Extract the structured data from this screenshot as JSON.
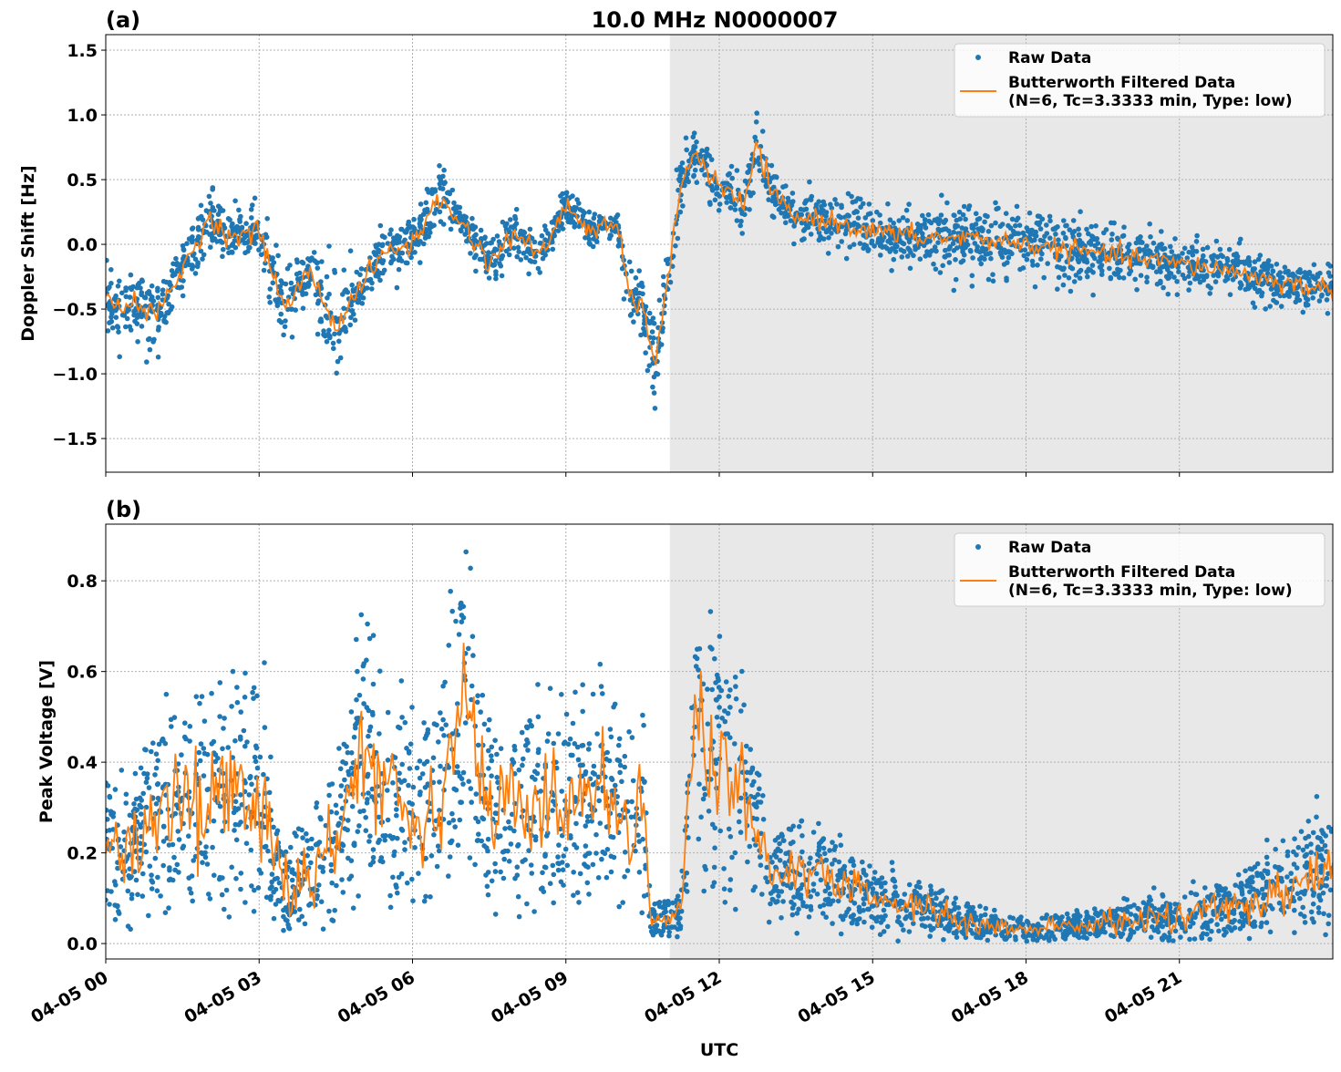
{
  "title": "10.0 MHz N0000007",
  "colors": {
    "raw": "#1f77b4",
    "filtered": "#ff7f0e",
    "shade": "#e8e8e8",
    "grid": "#b0b0b0"
  },
  "x_axis": {
    "label": "UTC",
    "range": [
      "04-05 00:00",
      "04-06 00:00"
    ],
    "ticks": [
      "04-05 00",
      "04-05 03",
      "04-05 06",
      "04-05 09",
      "04-05 12",
      "04-05 15",
      "04-05 18",
      "04-05 21"
    ],
    "tick_times": [
      "04-05 00:00",
      "04-05 03:00",
      "04-05 06:00",
      "04-05 09:00",
      "04-05 12:00",
      "04-05 15:00",
      "04-05 18:00",
      "04-05 21:00"
    ]
  },
  "legend": {
    "raw": "Raw Data",
    "filtered_line1": "Butterworth Filtered Data",
    "filtered_line2": "(N=6, Tc=3.3333 min, Type: low)",
    "placement": "upper-right"
  },
  "chart_data": [
    {
      "type": "scatter+line",
      "panel_label": "(a)",
      "ylabel": "Doppler Shift [Hz]",
      "ylim": [
        -1.76,
        1.62
      ],
      "yticks": [
        1.5,
        1.0,
        0.5,
        0.0,
        -0.5,
        -1.0,
        -1.5
      ],
      "ytick_labels": [
        "1.5",
        "1.0",
        "0.5",
        "0.0",
        "−0.5",
        "−1.0",
        "−1.5"
      ],
      "grid": true,
      "shaded_region": [
        "04-05 11:02",
        "04-06 00:00"
      ],
      "filtered": {
        "x": [
          "04-05 00:00",
          "04-05 00:30",
          "04-05 01:00",
          "04-05 01:30",
          "04-05 02:00",
          "04-05 02:30",
          "04-05 03:00",
          "04-05 03:30",
          "04-05 04:00",
          "04-05 04:30",
          "04-05 05:00",
          "04-05 05:30",
          "04-05 06:00",
          "04-05 06:30",
          "04-05 07:00",
          "04-05 07:30",
          "04-05 08:00",
          "04-05 08:30",
          "04-05 09:00",
          "04-05 09:30",
          "04-05 10:00",
          "04-05 10:15",
          "04-05 10:30",
          "04-05 10:45",
          "04-05 11:00",
          "04-05 11:15",
          "04-05 11:30",
          "04-05 12:00",
          "04-05 12:30",
          "04-05 12:45",
          "04-05 13:00",
          "04-05 13:30",
          "04-05 14:00",
          "04-05 14:30",
          "04-05 15:00",
          "04-05 16:00",
          "04-05 17:00",
          "04-05 18:00",
          "04-05 19:00",
          "04-05 20:00",
          "04-05 21:00",
          "04-05 22:00",
          "04-05 23:00",
          "04-06 00:00"
        ],
        "y": [
          -0.45,
          -0.45,
          -0.55,
          -0.2,
          0.2,
          0.05,
          0.1,
          -0.5,
          -0.2,
          -0.65,
          -0.3,
          -0.05,
          0.0,
          0.35,
          0.15,
          -0.15,
          0.1,
          -0.1,
          0.3,
          0.1,
          0.15,
          -0.4,
          -0.5,
          -0.9,
          -0.3,
          0.5,
          0.7,
          0.45,
          0.3,
          0.8,
          0.4,
          0.2,
          0.2,
          0.15,
          0.1,
          0.05,
          0.05,
          0.0,
          -0.05,
          -0.1,
          -0.15,
          -0.2,
          -0.3,
          -0.35
        ]
      },
      "raw_spread": [
        0.2,
        0.2,
        0.2,
        0.2,
        0.2,
        0.15,
        0.2,
        0.3,
        0.2,
        0.3,
        0.2,
        0.15,
        0.15,
        0.2,
        0.15,
        0.15,
        0.15,
        0.15,
        0.1,
        0.1,
        0.1,
        0.2,
        0.25,
        0.3,
        0.25,
        0.2,
        0.15,
        0.15,
        0.15,
        0.2,
        0.15,
        0.15,
        0.15,
        0.15,
        0.15,
        0.18,
        0.22,
        0.22,
        0.22,
        0.18,
        0.15,
        0.15,
        0.15,
        0.15
      ]
    },
    {
      "type": "scatter+line",
      "panel_label": "(b)",
      "ylabel": "Peak Voltage [V]",
      "ylim": [
        -0.034,
        0.925
      ],
      "yticks": [
        0.0,
        0.2,
        0.4,
        0.6,
        0.8
      ],
      "ytick_labels": [
        "0.0",
        "0.2",
        "0.4",
        "0.6",
        "0.8"
      ],
      "grid": true,
      "shaded_region": [
        "04-05 11:02",
        "04-06 00:00"
      ],
      "filtered": {
        "x": [
          "04-05 00:00",
          "04-05 00:30",
          "04-05 01:00",
          "04-05 01:30",
          "04-05 02:00",
          "04-05 02:30",
          "04-05 03:00",
          "04-05 03:30",
          "04-05 04:00",
          "04-05 04:30",
          "04-05 05:00",
          "04-05 05:30",
          "04-05 06:00",
          "04-05 06:30",
          "04-05 07:00",
          "04-05 07:30",
          "04-05 08:00",
          "04-05 08:30",
          "04-05 09:00",
          "04-05 09:30",
          "04-05 10:00",
          "04-05 10:30",
          "04-05 10:40",
          "04-05 11:15",
          "04-05 11:30",
          "04-05 12:00",
          "04-05 12:30",
          "04-05 13:00",
          "04-05 14:00",
          "04-05 15:00",
          "04-05 16:00",
          "04-05 17:00",
          "04-05 18:00",
          "04-05 19:00",
          "04-05 20:00",
          "04-05 21:00",
          "04-05 22:00",
          "04-05 23:00",
          "04-06 00:00"
        ],
        "y": [
          0.2,
          0.2,
          0.3,
          0.35,
          0.3,
          0.35,
          0.3,
          0.12,
          0.15,
          0.2,
          0.45,
          0.35,
          0.3,
          0.3,
          0.55,
          0.3,
          0.3,
          0.3,
          0.3,
          0.35,
          0.3,
          0.3,
          0.05,
          0.07,
          0.5,
          0.4,
          0.35,
          0.15,
          0.15,
          0.1,
          0.08,
          0.04,
          0.03,
          0.04,
          0.05,
          0.06,
          0.08,
          0.12,
          0.18
        ]
      },
      "raw_spread": [
        0.1,
        0.1,
        0.15,
        0.15,
        0.15,
        0.15,
        0.15,
        0.08,
        0.08,
        0.12,
        0.15,
        0.15,
        0.12,
        0.12,
        0.15,
        0.12,
        0.12,
        0.12,
        0.12,
        0.12,
        0.12,
        0.12,
        0.02,
        0.02,
        0.15,
        0.15,
        0.12,
        0.07,
        0.06,
        0.05,
        0.04,
        0.03,
        0.02,
        0.02,
        0.03,
        0.04,
        0.05,
        0.07,
        0.08
      ]
    }
  ]
}
